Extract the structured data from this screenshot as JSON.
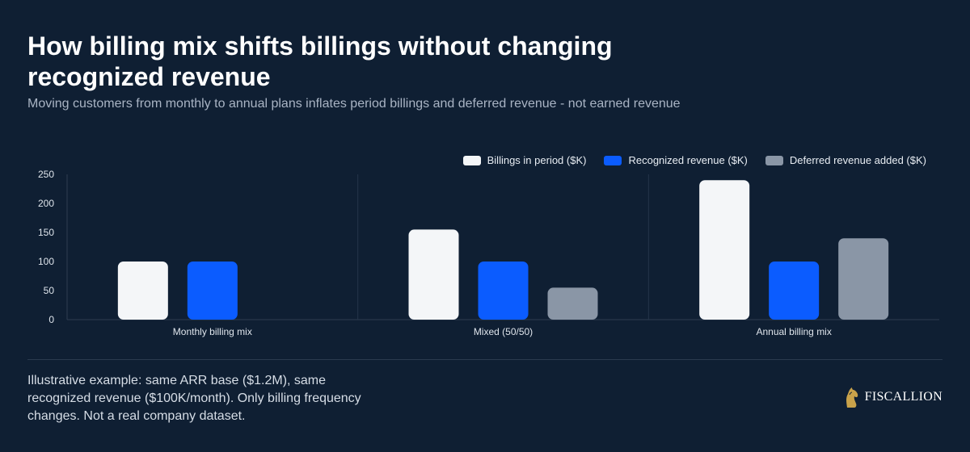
{
  "chart_data": {
    "type": "bar",
    "title": "How billing mix shifts billings without changing recognized revenue",
    "subtitle": "Moving customers from monthly to annual plans inflates period billings and deferred revenue - not earned revenue",
    "categories": [
      "Monthly billing mix",
      "Mixed (50/50)",
      "Annual billing mix"
    ],
    "series": [
      {
        "name": "Billings in period ($K)",
        "color": "#f4f6f8",
        "values": [
          100,
          155,
          240
        ]
      },
      {
        "name": "Recognized revenue ($K)",
        "color": "#0b5cff",
        "values": [
          100,
          100,
          100
        ]
      },
      {
        "name": "Deferred revenue added ($K)",
        "color": "#8a96a6",
        "values": [
          0,
          55,
          140
        ]
      }
    ],
    "ylim": [
      0,
      250
    ],
    "yticks": [
      "0",
      "50",
      "100",
      "150",
      "200",
      "250"
    ],
    "ytick_values": [
      0,
      50,
      100,
      150,
      200,
      250
    ],
    "legend_position": "top-right",
    "grid": false,
    "xlabel": "",
    "ylabel": ""
  },
  "footnote": "Illustrative example: same ARR base ($1.2M), same recognized revenue ($100K/month). Only billing frequency changes. Not a real company dataset.",
  "brand": {
    "name": "FISCALLION",
    "logo_icon": "horse-head-icon",
    "logo_color": "#c9a24a"
  }
}
